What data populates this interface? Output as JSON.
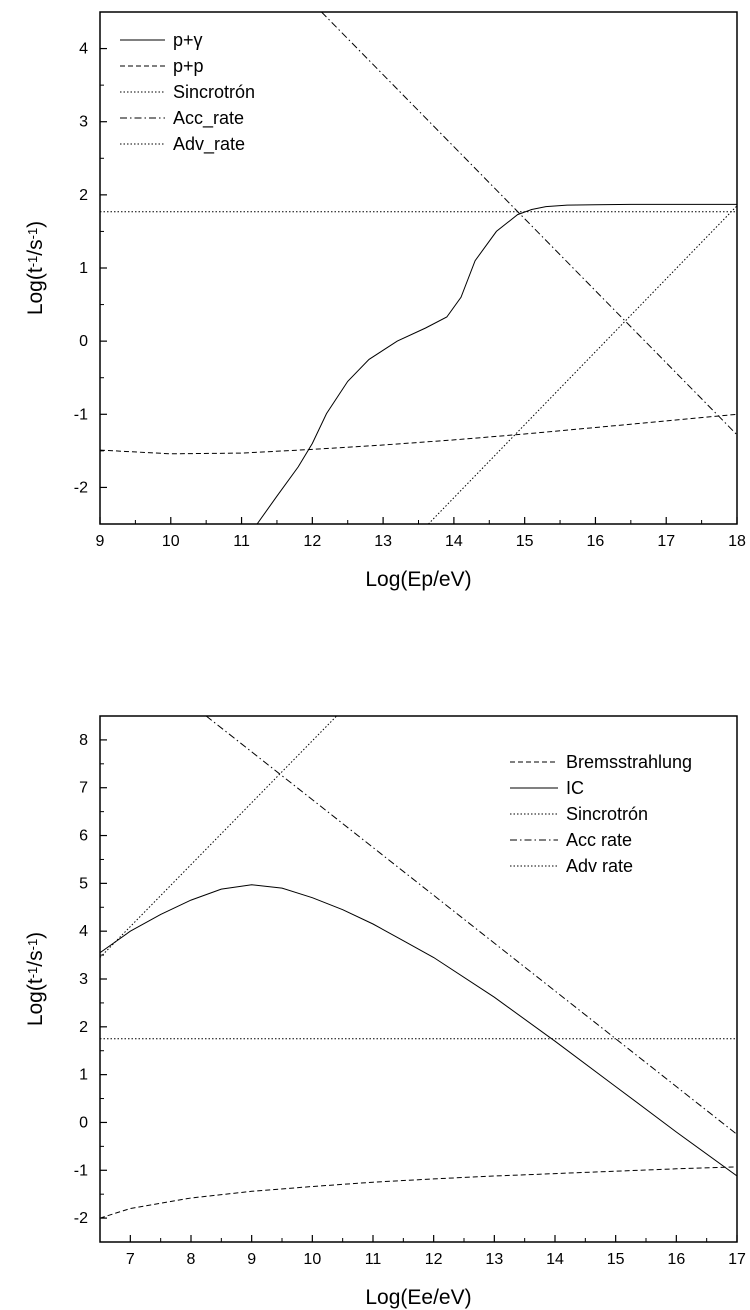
{
  "chart_data": [
    {
      "type": "line",
      "xlabel": "Log(Ep/eV)",
      "ylabel": {
        "base": "Log(t",
        "sup1": "-1",
        "mid": "/s",
        "sup2": "-1",
        "end": ")"
      },
      "xlim": [
        9,
        18
      ],
      "ylim": [
        -2.5,
        4.5
      ],
      "xticks": [
        9,
        10,
        11,
        12,
        13,
        14,
        15,
        16,
        17,
        18
      ],
      "yticks": [
        -2,
        -1,
        0,
        1,
        2,
        3,
        4
      ],
      "legend_position": "top-left",
      "series": [
        {
          "name": "p+γ",
          "dash": "solid",
          "x": [
            11.22,
            11.5,
            11.8,
            12.0,
            12.2,
            12.5,
            12.8,
            13.2,
            13.6,
            13.9,
            14.1,
            14.3,
            14.6,
            14.9,
            15.1,
            15.3,
            15.6,
            16.0,
            16.5,
            17.0,
            18.0
          ],
          "y": [
            -2.5,
            -2.12,
            -1.72,
            -1.4,
            -0.99,
            -0.55,
            -0.25,
            0.0,
            0.18,
            0.33,
            0.6,
            1.1,
            1.5,
            1.73,
            1.8,
            1.84,
            1.86,
            1.865,
            1.87,
            1.87,
            1.87
          ]
        },
        {
          "name": "p+p",
          "dash": "dash",
          "x": [
            9,
            10,
            11,
            12,
            13,
            14,
            15,
            16,
            17,
            18
          ],
          "y": [
            -1.49,
            -1.54,
            -1.53,
            -1.48,
            -1.42,
            -1.35,
            -1.27,
            -1.18,
            -1.09,
            -1.0
          ]
        },
        {
          "name": "Sincrotrón",
          "dash": "dot",
          "x": [
            13.64,
            18.0
          ],
          "y": [
            -2.5,
            1.85
          ]
        },
        {
          "name": "Acc_rate",
          "dash": "dashdot",
          "x": [
            12.13,
            18.0
          ],
          "y": [
            4.5,
            -1.28
          ]
        },
        {
          "name": "Adv_rate",
          "dash": "dot",
          "x": [
            9,
            18
          ],
          "y": [
            1.77,
            1.77
          ]
        }
      ]
    },
    {
      "type": "line",
      "xlabel": "Log(Ee/eV)",
      "ylabel": {
        "base": "Log(t",
        "sup1": "-1",
        "mid": "/s",
        "sup2": "-1",
        "end": ")"
      },
      "xlim": [
        6.5,
        17
      ],
      "ylim": [
        -2.5,
        8.5
      ],
      "xticks": [
        7,
        8,
        9,
        10,
        11,
        12,
        13,
        14,
        15,
        16,
        17
      ],
      "yticks": [
        -2,
        -1,
        0,
        1,
        2,
        3,
        4,
        5,
        6,
        7,
        8
      ],
      "legend_position": "top-right",
      "series": [
        {
          "name": "Bremsstrahlung",
          "dash": "dash",
          "x": [
            6.5,
            7,
            8,
            9,
            10,
            11,
            12,
            13,
            14,
            15,
            16,
            17
          ],
          "y": [
            -2.0,
            -1.8,
            -1.58,
            -1.44,
            -1.34,
            -1.25,
            -1.18,
            -1.12,
            -1.07,
            -1.02,
            -0.97,
            -0.93
          ]
        },
        {
          "name": "IC",
          "dash": "solid",
          "x": [
            6.5,
            7.0,
            7.5,
            8.0,
            8.5,
            9.0,
            9.5,
            10.0,
            10.5,
            11.0,
            11.5,
            12.0,
            13.0,
            14.0,
            15.0,
            16.0,
            17.0
          ],
          "y": [
            3.55,
            4.0,
            4.35,
            4.65,
            4.88,
            4.97,
            4.9,
            4.7,
            4.45,
            4.15,
            3.8,
            3.45,
            2.62,
            1.7,
            0.75,
            -0.2,
            -1.12
          ]
        },
        {
          "name": "Sincrotrón",
          "dash": "dot",
          "x": [
            6.5,
            10.4
          ],
          "y": [
            3.45,
            8.5
          ]
        },
        {
          "name": "Acc rate",
          "dash": "dashdot",
          "x": [
            8.25,
            17.0
          ],
          "y": [
            8.5,
            -0.25
          ]
        },
        {
          "name": "Adv rate",
          "dash": "dot",
          "x": [
            6.5,
            17.0
          ],
          "y": [
            1.75,
            1.75
          ]
        }
      ]
    }
  ]
}
